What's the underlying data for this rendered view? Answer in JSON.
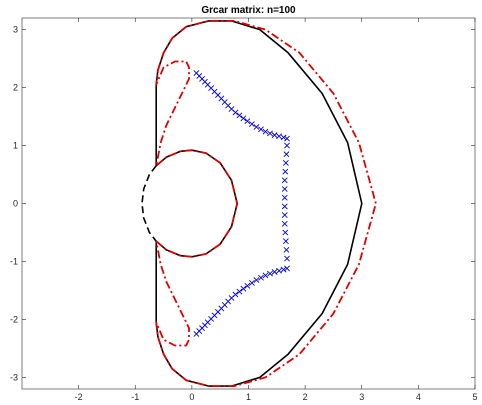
{
  "chart_data": {
    "type": "line",
    "title": "Grcar matrix:  n=100",
    "xlabel": "",
    "ylabel": "",
    "xlim": [
      -3,
      5
    ],
    "ylim": [
      -3.2,
      3.2
    ],
    "xticks": [
      -2,
      -1,
      0,
      1,
      2,
      3,
      4,
      5
    ],
    "yticks": [
      -3,
      -2,
      -1,
      0,
      1,
      2,
      3
    ],
    "grid": false,
    "series": [
      {
        "style": "solid",
        "color": "#000000",
        "points": [
          [
            -0.63,
            0.65
          ],
          [
            -0.63,
            2.05
          ],
          [
            -0.6,
            2.3
          ],
          [
            -0.5,
            2.6
          ],
          [
            -0.35,
            2.85
          ],
          [
            -0.1,
            3.05
          ],
          [
            0.3,
            3.15
          ],
          [
            0.7,
            3.15
          ],
          [
            1.2,
            3.0
          ],
          [
            1.7,
            2.6
          ],
          [
            2.3,
            1.9
          ],
          [
            2.75,
            1.05
          ],
          [
            3.0,
            0.0
          ],
          [
            2.75,
            -1.05
          ],
          [
            2.3,
            -1.9
          ],
          [
            1.7,
            -2.6
          ],
          [
            1.2,
            -3.0
          ],
          [
            0.7,
            -3.15
          ],
          [
            0.3,
            -3.15
          ],
          [
            -0.1,
            -3.05
          ],
          [
            -0.35,
            -2.85
          ],
          [
            -0.5,
            -2.6
          ],
          [
            -0.6,
            -2.3
          ],
          [
            -0.63,
            -2.05
          ],
          [
            -0.63,
            -0.65
          ]
        ]
      },
      {
        "style": "solid",
        "color": "#000000",
        "points": [
          [
            -0.63,
            0.65
          ],
          [
            -0.45,
            0.8
          ],
          [
            -0.2,
            0.9
          ],
          [
            0.0,
            0.92
          ],
          [
            0.25,
            0.87
          ],
          [
            0.5,
            0.7
          ],
          [
            0.7,
            0.4
          ],
          [
            0.8,
            0.0
          ],
          [
            0.7,
            -0.4
          ],
          [
            0.5,
            -0.7
          ],
          [
            0.25,
            -0.87
          ],
          [
            0.0,
            -0.92
          ],
          [
            -0.2,
            -0.9
          ],
          [
            -0.45,
            -0.8
          ],
          [
            -0.63,
            -0.65
          ]
        ]
      },
      {
        "style": "dashed",
        "color": "#000000",
        "points": [
          [
            -0.63,
            0.65
          ],
          [
            -0.75,
            0.5
          ],
          [
            -0.85,
            0.25
          ],
          [
            -0.88,
            0.0
          ],
          [
            -0.85,
            -0.25
          ],
          [
            -0.75,
            -0.5
          ],
          [
            -0.63,
            -0.65
          ]
        ]
      },
      {
        "style": "dashdot",
        "color": "#e00000",
        "points": [
          [
            -0.63,
            -0.65
          ],
          [
            -0.45,
            -0.8
          ],
          [
            -0.2,
            -0.9
          ],
          [
            0.0,
            -0.92
          ],
          [
            0.25,
            -0.87
          ],
          [
            0.5,
            -0.7
          ],
          [
            0.7,
            -0.4
          ],
          [
            0.8,
            0.0
          ],
          [
            0.7,
            0.4
          ],
          [
            0.5,
            0.7
          ],
          [
            0.25,
            0.87
          ],
          [
            0.0,
            0.92
          ],
          [
            -0.2,
            0.9
          ],
          [
            -0.45,
            0.8
          ],
          [
            -0.63,
            0.65
          ],
          [
            -0.55,
            1.05
          ],
          [
            -0.45,
            1.35
          ],
          [
            -0.25,
            1.75
          ],
          [
            -0.05,
            2.15
          ],
          [
            -0.05,
            2.35
          ],
          [
            -0.1,
            2.45
          ],
          [
            -0.3,
            2.45
          ],
          [
            -0.5,
            2.35
          ],
          [
            -0.63,
            2.05
          ],
          [
            -0.6,
            2.3
          ],
          [
            -0.5,
            2.6
          ],
          [
            -0.35,
            2.85
          ],
          [
            -0.1,
            3.05
          ],
          [
            0.3,
            3.15
          ],
          [
            0.75,
            3.15
          ],
          [
            1.3,
            3.0
          ],
          [
            1.9,
            2.6
          ],
          [
            2.5,
            1.9
          ],
          [
            2.95,
            1.05
          ],
          [
            3.25,
            0.0
          ],
          [
            2.95,
            -1.05
          ],
          [
            2.5,
            -1.9
          ],
          [
            1.9,
            -2.6
          ],
          [
            1.3,
            -3.0
          ],
          [
            0.75,
            -3.15
          ],
          [
            0.3,
            -3.15
          ],
          [
            -0.1,
            -3.05
          ],
          [
            -0.35,
            -2.85
          ],
          [
            -0.5,
            -2.6
          ],
          [
            -0.6,
            -2.3
          ],
          [
            -0.63,
            -2.05
          ],
          [
            -0.5,
            -2.35
          ],
          [
            -0.3,
            -2.45
          ],
          [
            -0.1,
            -2.45
          ],
          [
            -0.05,
            -2.35
          ],
          [
            -0.05,
            -2.15
          ],
          [
            -0.25,
            -1.75
          ],
          [
            -0.45,
            -1.35
          ],
          [
            -0.55,
            -1.05
          ],
          [
            -0.63,
            -0.65
          ]
        ]
      },
      {
        "style": "markers",
        "marker": "x",
        "color": "#0000e0",
        "points": [
          [
            0.08,
            2.25
          ],
          [
            0.13,
            2.2
          ],
          [
            0.18,
            2.15
          ],
          [
            0.23,
            2.1
          ],
          [
            0.28,
            2.05
          ],
          [
            0.34,
            1.99
          ],
          [
            0.4,
            1.93
          ],
          [
            0.46,
            1.87
          ],
          [
            0.52,
            1.81
          ],
          [
            0.58,
            1.75
          ],
          [
            0.64,
            1.69
          ],
          [
            0.7,
            1.63
          ],
          [
            0.77,
            1.57
          ],
          [
            0.84,
            1.52
          ],
          [
            0.91,
            1.47
          ],
          [
            0.98,
            1.42
          ],
          [
            1.06,
            1.37
          ],
          [
            1.14,
            1.32
          ],
          [
            1.22,
            1.28
          ],
          [
            1.3,
            1.24
          ],
          [
            1.38,
            1.21
          ],
          [
            1.46,
            1.18
          ],
          [
            1.54,
            1.16
          ],
          [
            1.62,
            1.14
          ],
          [
            1.68,
            1.12
          ],
          [
            1.68,
            1.0
          ],
          [
            1.67,
            0.85
          ],
          [
            1.66,
            0.7
          ],
          [
            1.65,
            0.55
          ],
          [
            1.64,
            0.4
          ],
          [
            1.64,
            0.25
          ],
          [
            1.64,
            0.1
          ],
          [
            1.64,
            -0.05
          ],
          [
            1.64,
            -0.2
          ],
          [
            1.64,
            -0.35
          ],
          [
            1.65,
            -0.5
          ],
          [
            1.66,
            -0.65
          ],
          [
            1.67,
            -0.8
          ],
          [
            1.68,
            -0.95
          ],
          [
            1.68,
            -1.12
          ],
          [
            1.62,
            -1.14
          ],
          [
            1.54,
            -1.16
          ],
          [
            1.46,
            -1.18
          ],
          [
            1.38,
            -1.21
          ],
          [
            1.3,
            -1.24
          ],
          [
            1.22,
            -1.28
          ],
          [
            1.14,
            -1.32
          ],
          [
            1.06,
            -1.37
          ],
          [
            0.98,
            -1.42
          ],
          [
            0.91,
            -1.47
          ],
          [
            0.84,
            -1.52
          ],
          [
            0.77,
            -1.57
          ],
          [
            0.7,
            -1.63
          ],
          [
            0.64,
            -1.69
          ],
          [
            0.58,
            -1.75
          ],
          [
            0.52,
            -1.81
          ],
          [
            0.46,
            -1.87
          ],
          [
            0.4,
            -1.93
          ],
          [
            0.34,
            -1.99
          ],
          [
            0.28,
            -2.05
          ],
          [
            0.23,
            -2.1
          ],
          [
            0.18,
            -2.15
          ],
          [
            0.13,
            -2.2
          ],
          [
            0.08,
            -2.25
          ]
        ]
      }
    ]
  }
}
